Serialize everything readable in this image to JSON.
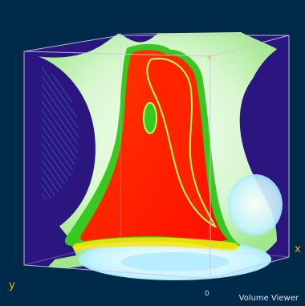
{
  "viewer": {
    "title": "Volume Viewer",
    "colors": {
      "background": "#002a4a",
      "box_face": "#2b1680",
      "box_edge": "#c8c8dc",
      "surface_outer": "#d8f7d0",
      "surface_green": "#39c822",
      "surface_core": "#ff1a00",
      "surface_cyan": "#c8f4ff",
      "label_axis": "#f0b400",
      "label_title": "#e8e8e8"
    }
  },
  "axes": {
    "x_label": "x",
    "y_label": "y",
    "z_label": "z",
    "origin_label": "0"
  }
}
